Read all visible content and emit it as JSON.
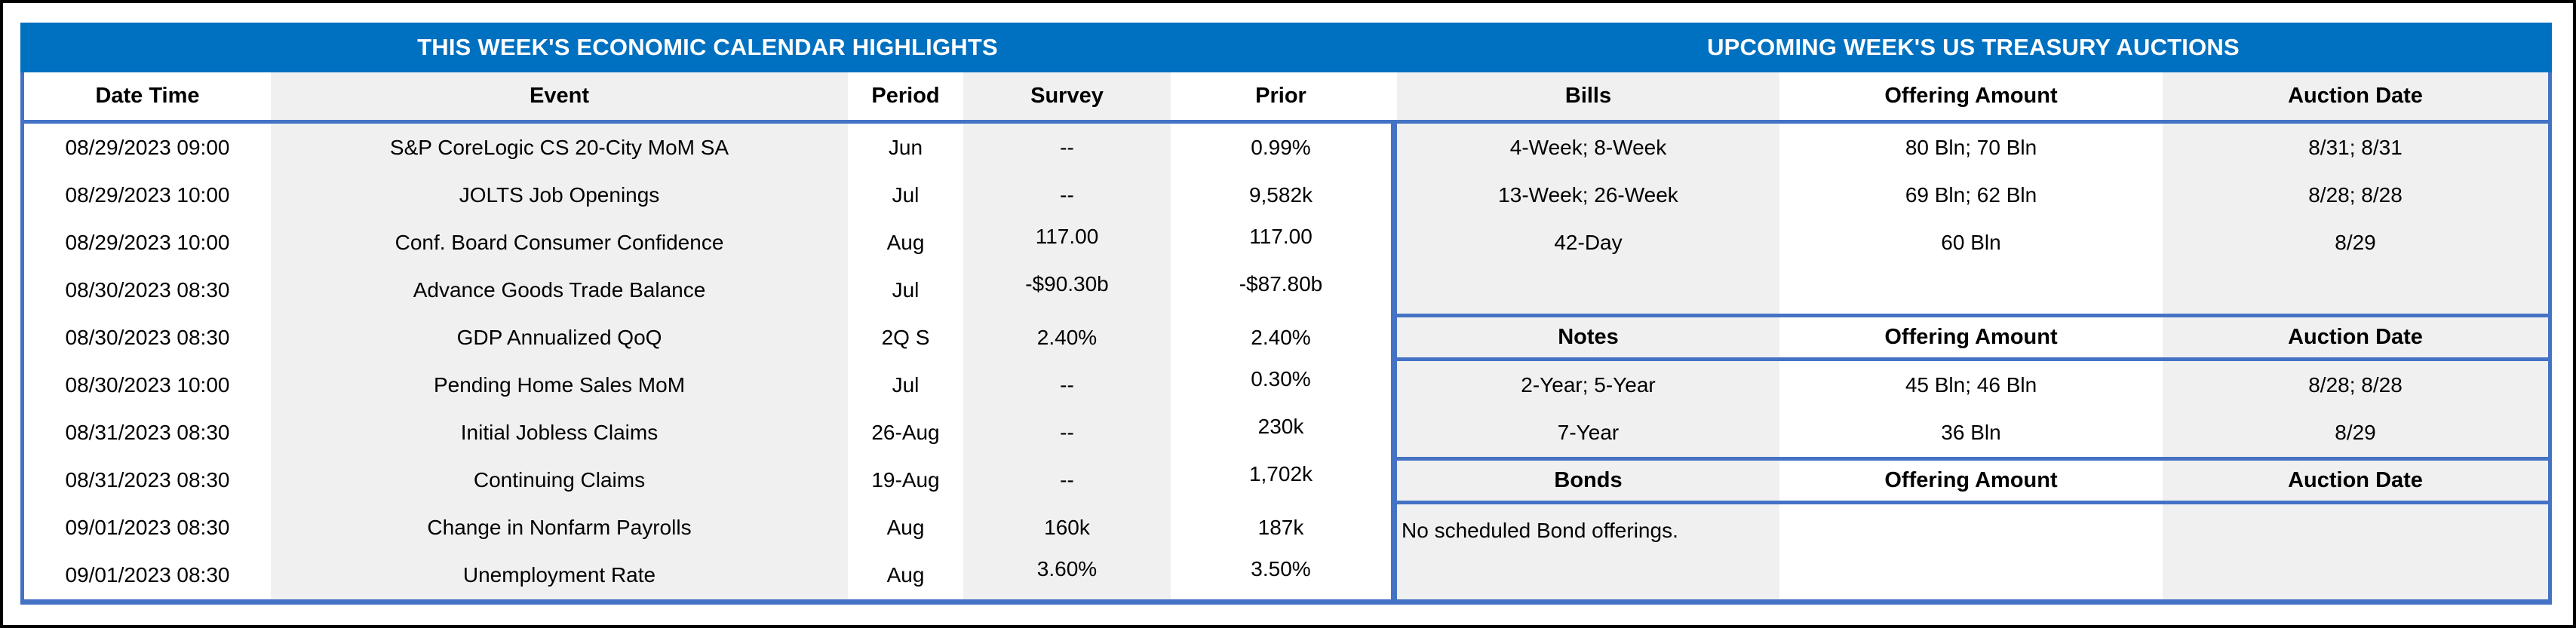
{
  "calendar": {
    "title": "THIS WEEK'S ECONOMIC CALENDAR HIGHLIGHTS",
    "columns": [
      "Date Time",
      "Event",
      "Period",
      "Survey",
      "Prior"
    ],
    "rows": [
      [
        "08/29/2023 09:00",
        "S&P CoreLogic CS 20-City MoM SA",
        "Jun",
        "--",
        "0.99%"
      ],
      [
        "08/29/2023 10:00",
        "JOLTS Job Openings",
        "Jul",
        "--",
        "9,582k"
      ],
      [
        "08/29/2023 10:00",
        "Conf. Board Consumer Confidence",
        "Aug",
        "117.00",
        "117.00"
      ],
      [
        "08/30/2023 08:30",
        "Advance Goods Trade Balance",
        "Jul",
        "-$90.30b",
        "-$87.80b"
      ],
      [
        "08/30/2023 08:30",
        "GDP Annualized QoQ",
        "2Q S",
        "2.40%",
        "2.40%"
      ],
      [
        "08/30/2023 10:00",
        "Pending Home Sales MoM",
        "Jul",
        "--",
        "0.30%"
      ],
      [
        "08/31/2023 08:30",
        "Initial Jobless Claims",
        "26-Aug",
        "--",
        "230k"
      ],
      [
        "08/31/2023 08:30",
        "Continuing Claims",
        "19-Aug",
        "--",
        "1,702k"
      ],
      [
        "09/01/2023 08:30",
        "Change in Nonfarm Payrolls",
        "Aug",
        "160k",
        "187k"
      ],
      [
        "09/01/2023 08:30",
        "Unemployment Rate",
        "Aug",
        "3.60%",
        "3.50%"
      ]
    ]
  },
  "auctions": {
    "title": "UPCOMING WEEK'S US TREASURY AUCTIONS",
    "bills_header": [
      "Bills",
      "Offering Amount",
      "Auction Date"
    ],
    "bills_rows": [
      [
        "4-Week; 8-Week",
        "80 Bln; 70 Bln",
        "8/31; 8/31"
      ],
      [
        "13-Week; 26-Week",
        "69 Bln; 62 Bln",
        "8/28; 8/28"
      ],
      [
        "42-Day",
        "60 Bln",
        "8/29"
      ]
    ],
    "notes_header": [
      "Notes",
      "Offering Amount",
      "Auction Date"
    ],
    "notes_rows": [
      [
        "2-Year; 5-Year",
        "45 Bln; 46 Bln",
        "8/28; 8/28"
      ],
      [
        "7-Year",
        "36 Bln",
        "8/29"
      ]
    ],
    "bonds_header": [
      "Bonds",
      "Offering Amount",
      "Auction Date"
    ],
    "bonds_note": "No scheduled Bond offerings."
  },
  "colors": {
    "title_bar_blue": "#0070C0",
    "border_blue": "#4472C4",
    "stripe_gray": "#F0F0F0",
    "frame_black": "#000000"
  }
}
